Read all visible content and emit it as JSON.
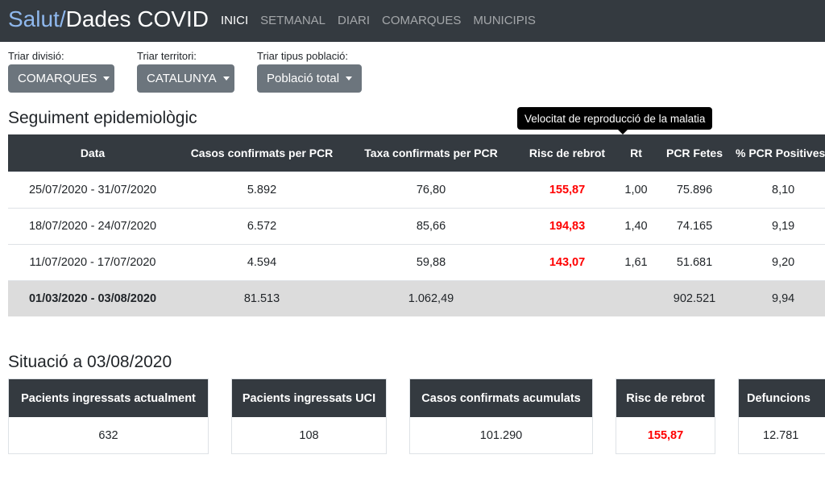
{
  "brand": {
    "part1": "Salut/",
    "part2": "Dades COVID"
  },
  "nav": [
    "INICI",
    "SETMANAL",
    "DIARI",
    "COMARQUES",
    "MUNICIPIS"
  ],
  "filters": {
    "division": {
      "label": "Triar divisió:",
      "value": "COMARQUES"
    },
    "territory": {
      "label": "Triar territori:",
      "value": "CATALUNYA"
    },
    "population": {
      "label": "Triar tipus població:",
      "value": "Població total"
    }
  },
  "section1_title": "Seguiment epidemiològic",
  "tooltip": "Velocitat de reproducció de la malatia",
  "table": {
    "headers": [
      "Data",
      "Casos confirmats per PCR",
      "Taxa confirmats per PCR",
      "Risc de rebrot",
      "Rt",
      "PCR Fetes",
      "% PCR Positives"
    ],
    "rows": [
      [
        "25/07/2020 - 31/07/2020",
        "5.892",
        "76,80",
        "155,87",
        "1,00",
        "75.896",
        "8,10"
      ],
      [
        "18/07/2020 - 24/07/2020",
        "6.572",
        "85,66",
        "194,83",
        "1,40",
        "74.165",
        "9,19"
      ],
      [
        "11/07/2020 - 17/07/2020",
        "4.594",
        "59,88",
        "143,07",
        "1,61",
        "51.681",
        "9,20"
      ]
    ],
    "total": [
      "01/03/2020 - 03/08/2020",
      "81.513",
      "1.062,49",
      "",
      "",
      "902.521",
      "9,94"
    ]
  },
  "section2_title": "Situació a 03/08/2020",
  "cards": [
    {
      "label": "Pacients ingressats actualment",
      "value": "632"
    },
    {
      "label": "Pacients ingressats UCI",
      "value": "108"
    },
    {
      "label": "Casos confirmats acumulats",
      "value": "101.290"
    },
    {
      "label": "Risc de rebrot",
      "value": "155,87"
    },
    {
      "label": "Defuncions",
      "value": "12.781"
    }
  ],
  "colors": {
    "navbar": "#343a40",
    "brand_accent": "#8fb8ee",
    "risk": "#ff0000",
    "total_row": "#dcdcdc",
    "dropdown": "#6c757d"
  }
}
